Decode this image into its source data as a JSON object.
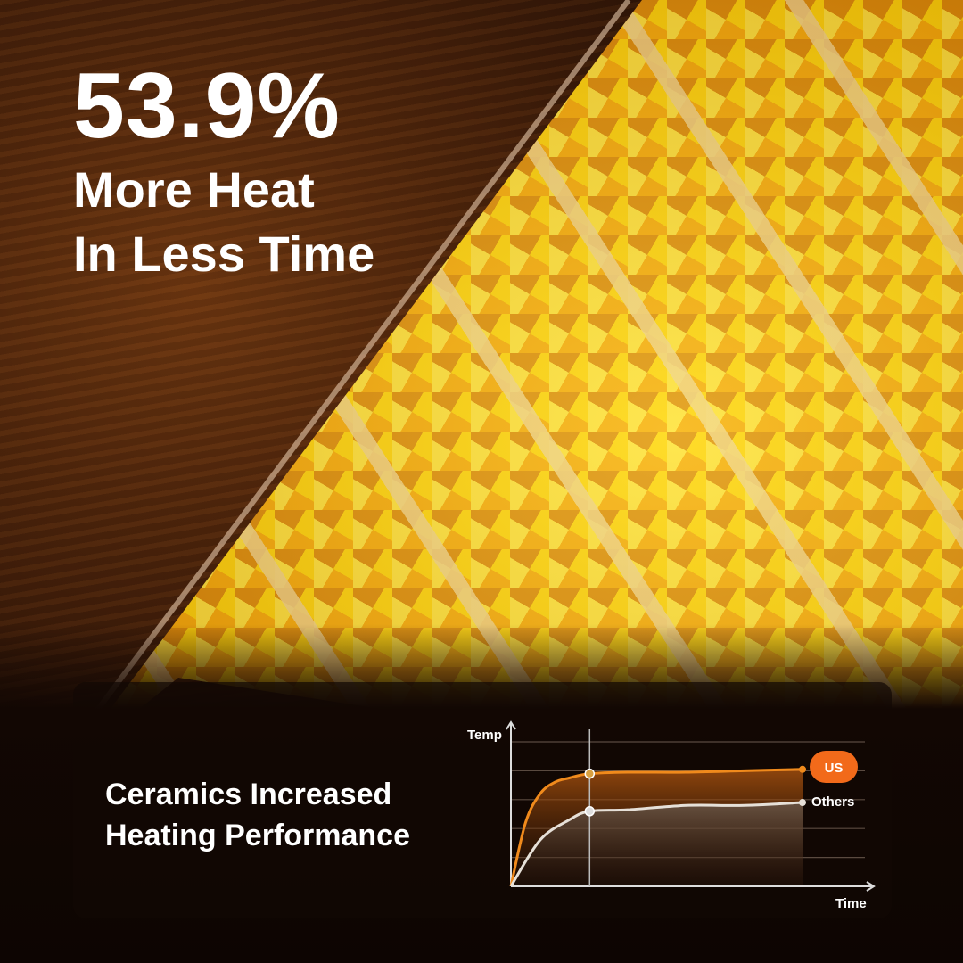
{
  "headline": {
    "stat": "53.9%",
    "line1": "More Heat",
    "line2": "In Less Time"
  },
  "caption": {
    "line1": "Ceramics Increased",
    "line2": "Heating Performance"
  },
  "colors": {
    "us": "#f08a1c",
    "us_badge": "#f26a1a",
    "others": "#e6e0d8",
    "grid": "#5a4a40"
  },
  "chart_data": {
    "type": "line",
    "xlabel": "Time",
    "ylabel": "Temp",
    "xlim": [
      0,
      10
    ],
    "ylim": [
      0,
      5
    ],
    "grid": true,
    "marker_x": 2.7,
    "series": [
      {
        "name": "US",
        "x": [
          0,
          0.5,
          1,
          1.5,
          2,
          2.7,
          4,
          6,
          8,
          10
        ],
        "values": [
          0,
          2.2,
          3.2,
          3.6,
          3.75,
          3.9,
          3.95,
          3.95,
          4.0,
          4.05
        ]
      },
      {
        "name": "Others",
        "x": [
          0,
          1,
          2,
          2.7,
          4,
          6,
          8,
          10
        ],
        "values": [
          0,
          1.6,
          2.3,
          2.6,
          2.65,
          2.8,
          2.8,
          2.9
        ]
      }
    ]
  }
}
